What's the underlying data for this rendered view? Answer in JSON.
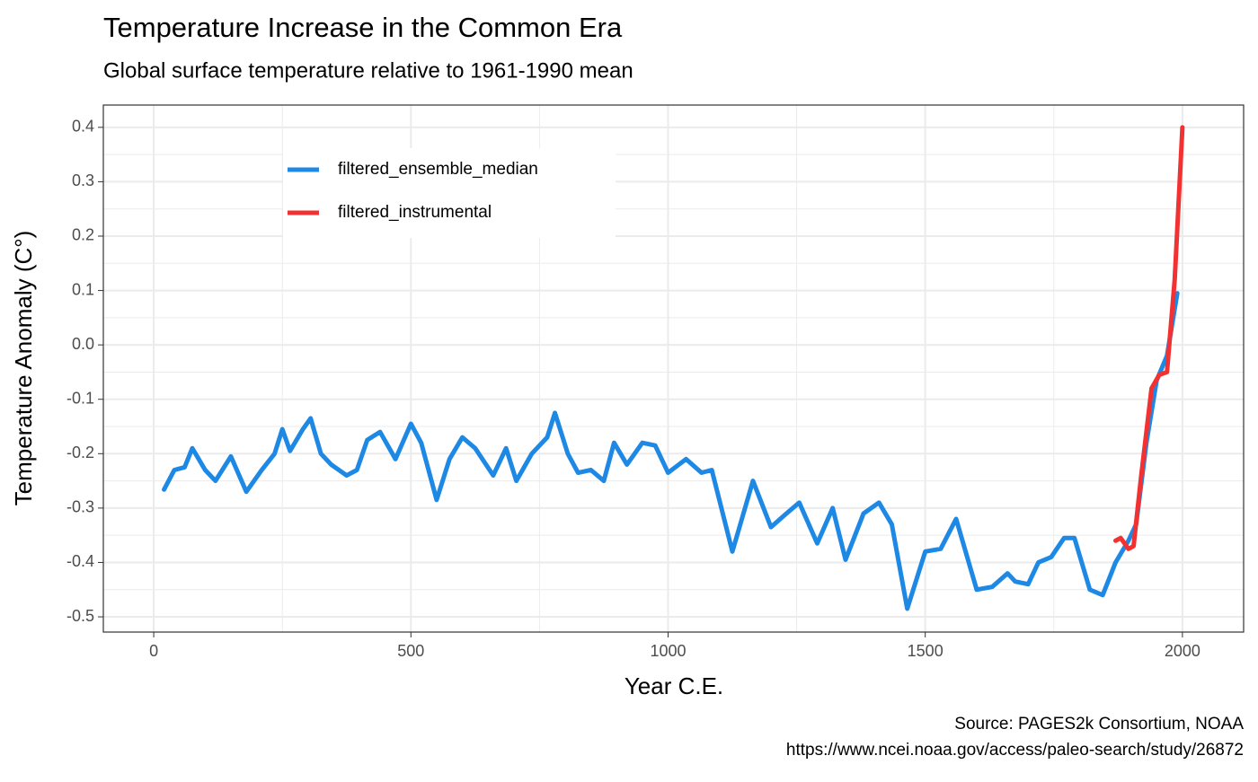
{
  "chart_data": {
    "type": "line",
    "title": "Temperature Increase in the Common Era",
    "subtitle": "Global surface temperature relative to 1961-1990 mean",
    "x_label": "Year C.E.",
    "y_label": "Temperature Anomaly (C°)",
    "caption": [
      "Source: PAGES2k Consortium, NOAA",
      "https://www.ncei.noaa.gov/access/paleo-search/study/26872"
    ],
    "xlim": [
      -98,
      2119
    ],
    "xticks": [
      0,
      500,
      1000,
      1500,
      2000
    ],
    "ylim": [
      -0.528,
      0.441
    ],
    "yticks": [
      -0.5,
      -0.4,
      -0.3,
      -0.2,
      -0.1,
      {
        "value": 0,
        "label": "0.0"
      },
      0.1,
      0.2,
      0.3,
      0.4
    ],
    "grid": true,
    "legend_position": "inside-top-left",
    "series": [
      {
        "name": "filtered_ensemble_median",
        "color": "#1e88e5",
        "x": [
          20,
          40,
          60,
          75,
          100,
          120,
          150,
          180,
          210,
          235,
          250,
          265,
          290,
          305,
          325,
          345,
          375,
          395,
          415,
          440,
          470,
          500,
          520,
          550,
          575,
          600,
          625,
          660,
          685,
          705,
          735,
          765,
          780,
          805,
          825,
          850,
          875,
          895,
          920,
          950,
          975,
          1000,
          1035,
          1065,
          1085,
          1125,
          1165,
          1200,
          1230,
          1255,
          1290,
          1320,
          1345,
          1380,
          1410,
          1435,
          1465,
          1500,
          1530,
          1560,
          1600,
          1630,
          1660,
          1675,
          1700,
          1720,
          1745,
          1770,
          1790,
          1820,
          1845,
          1870,
          1895,
          1910,
          1930,
          1950,
          1970,
          1990
        ],
        "values": [
          -0.266,
          -0.23,
          -0.225,
          -0.19,
          -0.23,
          -0.25,
          -0.205,
          -0.27,
          -0.23,
          -0.2,
          -0.155,
          -0.195,
          -0.155,
          -0.135,
          -0.2,
          -0.22,
          -0.24,
          -0.23,
          -0.175,
          -0.16,
          -0.21,
          -0.145,
          -0.18,
          -0.285,
          -0.21,
          -0.17,
          -0.19,
          -0.24,
          -0.19,
          -0.25,
          -0.2,
          -0.17,
          -0.125,
          -0.2,
          -0.235,
          -0.23,
          -0.25,
          -0.18,
          -0.22,
          -0.18,
          -0.185,
          -0.235,
          -0.21,
          -0.235,
          -0.23,
          -0.38,
          -0.25,
          -0.335,
          -0.31,
          -0.29,
          -0.365,
          -0.3,
          -0.395,
          -0.31,
          -0.29,
          -0.33,
          -0.485,
          -0.38,
          -0.375,
          -0.32,
          -0.45,
          -0.445,
          -0.42,
          -0.435,
          -0.44,
          -0.4,
          -0.39,
          -0.355,
          -0.355,
          -0.45,
          -0.46,
          -0.4,
          -0.36,
          -0.33,
          -0.18,
          -0.065,
          -0.02,
          0.095
        ]
      },
      {
        "name": "filtered_instrumental",
        "color": "#f23232",
        "x": [
          1870,
          1880,
          1895,
          1905,
          1920,
          1940,
          1955,
          1970,
          1985,
          2000
        ],
        "values": [
          -0.36,
          -0.355,
          -0.375,
          -0.37,
          -0.24,
          -0.08,
          -0.055,
          -0.05,
          0.12,
          0.4
        ]
      }
    ]
  }
}
